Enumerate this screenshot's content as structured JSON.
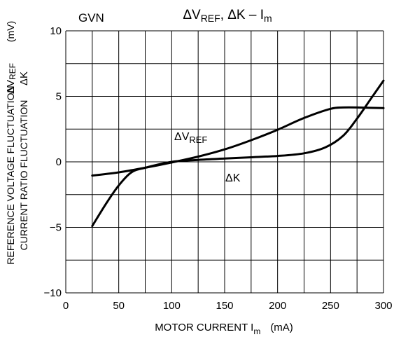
{
  "chart_data": {
    "type": "line",
    "tag": "GVN",
    "title": {
      "delta1": "ΔV",
      "sub1": "REF",
      "rest": ", ΔK  –  I",
      "sub2": "m"
    },
    "xlabel": {
      "text": "MOTOR CURRENT  I",
      "sub": "m",
      "unit": "(mA)"
    },
    "ylabel": {
      "line1": "REFERENCE VOLTAGE FLUCTUATION",
      "line2": "CURRENT RATIO FLUCTUATION",
      "unit": "(mV)",
      "sym1_main": "ΔV",
      "sym1_sub": "REF",
      "sym2": "ΔK"
    },
    "xlim": [
      0,
      300
    ],
    "ylim": [
      -10,
      10
    ],
    "x_ticks": [
      0,
      50,
      100,
      150,
      200,
      250,
      300
    ],
    "x_tick_labels": [
      "0",
      "50",
      "100",
      "150",
      "200",
      "250",
      "300"
    ],
    "y_ticks": [
      10,
      5,
      0,
      -5,
      -10
    ],
    "y_tick_labels": [
      "10",
      "5",
      "0",
      "−5",
      "−10"
    ],
    "grid": true,
    "series": [
      {
        "name": "ΔV",
        "name_sub": "REF",
        "x": [
          25,
          50,
          75,
          100,
          125,
          150,
          175,
          200,
          225,
          250,
          262,
          275,
          300
        ],
        "y": [
          -1.05,
          -0.8,
          -0.45,
          -0.05,
          0.4,
          0.95,
          1.65,
          2.45,
          3.35,
          4.05,
          4.15,
          4.15,
          4.1
        ]
      },
      {
        "name": "ΔK",
        "name_sub": "",
        "x": [
          25,
          38,
          50,
          62,
          75,
          100,
          125,
          150,
          175,
          200,
          225,
          245,
          262,
          275,
          288,
          300
        ],
        "y": [
          -4.9,
          -3.2,
          -1.8,
          -0.8,
          -0.45,
          0.0,
          0.15,
          0.25,
          0.35,
          0.45,
          0.65,
          1.1,
          2.0,
          3.3,
          4.8,
          6.2
        ]
      }
    ]
  }
}
